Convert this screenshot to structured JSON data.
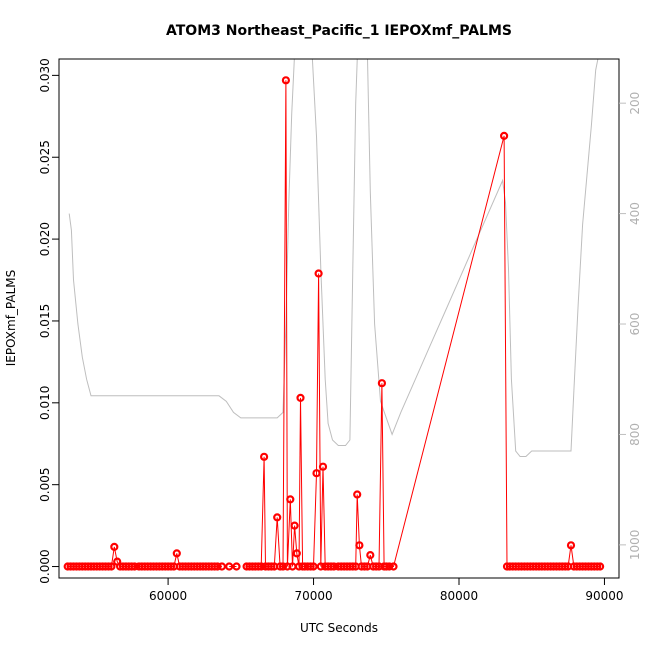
{
  "chart_data": {
    "type": "scatter",
    "title": "ATOM3 Northeast_Pacific_1 IEPOXmf_PALMS",
    "xlabel": "UTC Seconds",
    "ylabel": "IEPOXmf_PALMS",
    "xlim": [
      52500,
      91000
    ],
    "ylim": [
      -0.0007,
      0.031
    ],
    "x_ticks": [
      60000,
      70000,
      80000,
      90000
    ],
    "x_tick_labels": [
      "60000",
      "70000",
      "80000",
      "90000"
    ],
    "y_ticks": [
      0.0,
      0.005,
      0.01,
      0.015,
      0.02,
      0.025,
      0.03
    ],
    "y_tick_labels": [
      "0.000",
      "0.005",
      "0.010",
      "0.015",
      "0.020",
      "0.025",
      "0.030"
    ],
    "grid": false,
    "secondary_axis": {
      "side": "right",
      "reversed": true,
      "ylim": [
        1060,
        120
      ],
      "ticks": [
        200,
        400,
        600,
        800,
        1000
      ],
      "tick_labels": [
        "200",
        "400",
        "600",
        "800",
        "1000"
      ],
      "color": "#bebebe"
    },
    "colors": {
      "series": "#ff0000",
      "secondary": "#bebebe"
    },
    "series": [
      {
        "marker": "circle",
        "line": true,
        "color": "#ff0000",
        "segments": [
          [
            [
              53100,
              0
            ],
            [
              53300,
              0
            ],
            [
              53500,
              0
            ],
            [
              53700,
              0
            ],
            [
              53900,
              0
            ],
            [
              54100,
              0
            ],
            [
              54300,
              0
            ],
            [
              54500,
              0
            ],
            [
              54700,
              0
            ],
            [
              54900,
              0
            ],
            [
              55100,
              0
            ],
            [
              55300,
              0
            ],
            [
              55500,
              0
            ],
            [
              55700,
              0
            ],
            [
              55900,
              0
            ],
            [
              56100,
              0
            ],
            [
              56300,
              0.0012
            ],
            [
              56500,
              0.0003
            ],
            [
              56700,
              0
            ],
            [
              56900,
              0
            ],
            [
              57100,
              0
            ],
            [
              57300,
              0
            ],
            [
              57500,
              0
            ],
            [
              57700,
              0
            ]
          ],
          [
            [
              58000,
              0
            ],
            [
              58200,
              0
            ],
            [
              58400,
              0
            ],
            [
              58600,
              0
            ],
            [
              58800,
              0
            ],
            [
              59000,
              0
            ],
            [
              59200,
              0
            ],
            [
              59400,
              0
            ],
            [
              59600,
              0
            ],
            [
              59800,
              0
            ],
            [
              60000,
              0
            ],
            [
              60200,
              0
            ],
            [
              60400,
              0
            ],
            [
              60600,
              0.0008
            ],
            [
              60800,
              0
            ],
            [
              61000,
              0
            ],
            [
              61200,
              0
            ],
            [
              61400,
              0
            ],
            [
              61600,
              0
            ],
            [
              61800,
              0
            ],
            [
              62000,
              0
            ],
            [
              62200,
              0
            ],
            [
              62400,
              0
            ],
            [
              62600,
              0
            ],
            [
              62800,
              0
            ],
            [
              63000,
              0
            ],
            [
              63200,
              0
            ],
            [
              63400,
              0
            ],
            [
              63700,
              0
            ]
          ],
          [
            [
              64200,
              0
            ],
            [
              64700,
              0
            ]
          ],
          [
            [
              65400,
              0
            ],
            [
              65600,
              0
            ],
            [
              65800,
              0
            ],
            [
              66000,
              0
            ],
            [
              66200,
              0
            ],
            [
              66400,
              0
            ],
            [
              66600,
              0.0067
            ],
            [
              66700,
              0
            ],
            [
              66900,
              0
            ],
            [
              67100,
              0
            ],
            [
              67300,
              0
            ],
            [
              67500,
              0.003
            ],
            [
              67700,
              0
            ],
            [
              67900,
              0
            ],
            [
              68100,
              0.0297
            ],
            [
              68200,
              0
            ],
            [
              68400,
              0.0041
            ],
            [
              68550,
              0
            ],
            [
              68700,
              0.0025
            ],
            [
              68850,
              0.0008
            ],
            [
              69000,
              0
            ],
            [
              69100,
              0.0103
            ],
            [
              69250,
              0
            ],
            [
              69400,
              0
            ],
            [
              69600,
              0
            ],
            [
              69800,
              0
            ],
            [
              70000,
              0
            ],
            [
              70200,
              0.0057
            ],
            [
              70350,
              0.0179
            ],
            [
              70500,
              0
            ],
            [
              70650,
              0.0061
            ],
            [
              70800,
              0
            ],
            [
              71000,
              0
            ],
            [
              71200,
              0
            ],
            [
              71400,
              0
            ]
          ],
          [
            [
              71700,
              0
            ],
            [
              71900,
              0
            ],
            [
              72100,
              0
            ],
            [
              72300,
              0
            ],
            [
              72500,
              0
            ],
            [
              72700,
              0
            ],
            [
              72900,
              0
            ],
            [
              73000,
              0.0044
            ],
            [
              73150,
              0.0013
            ],
            [
              73300,
              0
            ],
            [
              73500,
              0
            ],
            [
              73700,
              0
            ],
            [
              73900,
              0.0007
            ],
            [
              74100,
              0
            ],
            [
              74300,
              0
            ],
            [
              74500,
              0
            ],
            [
              74700,
              0.0112
            ],
            [
              74850,
              0
            ],
            [
              75000,
              0
            ],
            [
              75200,
              0
            ],
            [
              75500,
              0
            ],
            [
              83100,
              0.0263
            ],
            [
              83300,
              0
            ],
            [
              83500,
              0
            ],
            [
              83700,
              0
            ],
            [
              83900,
              0
            ],
            [
              84100,
              0
            ],
            [
              84300,
              0
            ],
            [
              84500,
              0
            ],
            [
              84700,
              0
            ],
            [
              84900,
              0
            ],
            [
              85100,
              0
            ],
            [
              85300,
              0
            ],
            [
              85500,
              0
            ],
            [
              85700,
              0
            ],
            [
              85900,
              0
            ],
            [
              86100,
              0
            ],
            [
              86300,
              0
            ],
            [
              86500,
              0
            ],
            [
              86700,
              0
            ],
            [
              86900,
              0
            ],
            [
              87100,
              0
            ],
            [
              87300,
              0
            ],
            [
              87500,
              0
            ],
            [
              87700,
              0.0013
            ],
            [
              87900,
              0
            ],
            [
              88100,
              0
            ],
            [
              88300,
              0
            ],
            [
              88500,
              0
            ],
            [
              88700,
              0
            ],
            [
              88900,
              0
            ],
            [
              89100,
              0
            ],
            [
              89300,
              0
            ],
            [
              89500,
              0
            ],
            [
              89700,
              0
            ]
          ]
        ]
      }
    ],
    "secondary_series": {
      "color": "#bebebe",
      "points": [
        [
          53200,
          400
        ],
        [
          53350,
          430
        ],
        [
          53500,
          520
        ],
        [
          53800,
          600
        ],
        [
          54100,
          660
        ],
        [
          54400,
          700
        ],
        [
          54700,
          730
        ],
        [
          55000,
          730
        ],
        [
          56000,
          730
        ],
        [
          58000,
          730
        ],
        [
          60000,
          730
        ],
        [
          62000,
          730
        ],
        [
          63500,
          730
        ],
        [
          64000,
          740
        ],
        [
          64500,
          760
        ],
        [
          65000,
          770
        ],
        [
          66000,
          770
        ],
        [
          67000,
          770
        ],
        [
          67500,
          770
        ],
        [
          67900,
          760
        ],
        [
          68100,
          600
        ],
        [
          68300,
          380
        ],
        [
          68500,
          220
        ],
        [
          68700,
          110
        ],
        [
          69000,
          50
        ],
        [
          69300,
          50
        ],
        [
          69600,
          50
        ],
        [
          69900,
          110
        ],
        [
          70200,
          260
        ],
        [
          70500,
          500
        ],
        [
          70800,
          700
        ],
        [
          71000,
          780
        ],
        [
          71300,
          810
        ],
        [
          71700,
          820
        ],
        [
          72200,
          820
        ],
        [
          72500,
          810
        ],
        [
          72700,
          500
        ],
        [
          72900,
          200
        ],
        [
          73100,
          50
        ],
        [
          73300,
          50
        ],
        [
          73500,
          50
        ],
        [
          73700,
          110
        ],
        [
          73900,
          360
        ],
        [
          74200,
          600
        ],
        [
          74600,
          740
        ],
        [
          75000,
          770
        ],
        [
          75400,
          800
        ],
        [
          76000,
          760
        ],
        [
          77000,
          700
        ],
        [
          78000,
          640
        ],
        [
          79000,
          580
        ],
        [
          80000,
          520
        ],
        [
          81000,
          460
        ],
        [
          82000,
          400
        ],
        [
          83000,
          340
        ],
        [
          83200,
          380
        ],
        [
          83400,
          500
        ],
        [
          83600,
          700
        ],
        [
          83900,
          830
        ],
        [
          84200,
          840
        ],
        [
          84600,
          840
        ],
        [
          85000,
          830
        ],
        [
          86000,
          830
        ],
        [
          87000,
          830
        ],
        [
          87700,
          830
        ],
        [
          87900,
          720
        ],
        [
          88200,
          560
        ],
        [
          88500,
          420
        ],
        [
          88800,
          330
        ],
        [
          89100,
          240
        ],
        [
          89400,
          140
        ],
        [
          89700,
          100
        ]
      ]
    }
  }
}
